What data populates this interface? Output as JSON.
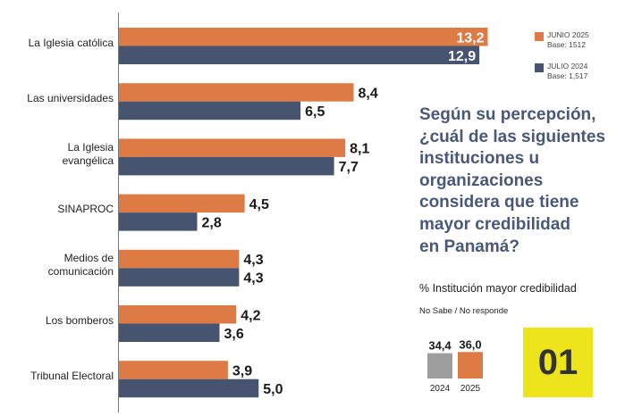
{
  "chart_data": {
    "type": "bar",
    "orientation": "horizontal",
    "categories": [
      "La Iglesia católica",
      "Las universidades",
      "La Iglesia\nevangélica",
      "SINAPROC",
      "Medios de\ncomunicación",
      "Los bomberos",
      "Tribunal Electoral"
    ],
    "series": [
      {
        "name": "JUNIO 2025",
        "base": "Base: 1512",
        "color": "#de7b45",
        "values": [
          13.2,
          8.4,
          8.1,
          4.5,
          4.3,
          4.2,
          3.9
        ],
        "labels": [
          "13,2",
          "8,4",
          "8,1",
          "4,5",
          "4,3",
          "4,2",
          "3,9"
        ]
      },
      {
        "name": "JULIO 2024",
        "base": "Base: 1,517",
        "color": "#475470",
        "values": [
          12.9,
          6.5,
          7.7,
          2.8,
          4.3,
          3.6,
          5.0
        ],
        "labels": [
          "12,9",
          "6,5",
          "7,7",
          "2,8",
          "4,3",
          "3,6",
          "5,0"
        ]
      }
    ],
    "xlim": [
      0,
      13.6
    ],
    "grid": false,
    "legend_position": "top-right"
  },
  "question": "Según su percepción,\n¿cuál de las siguientes\ninstituciones u\norganizaciones\nconsidera que tiene\nmayor credibilidad\nen Panamá?",
  "subtitle": "% Institución mayor credibilidad",
  "no_sabe": {
    "title": "No Sabe / No responde",
    "bars": [
      {
        "year": "2024",
        "value": 34.4,
        "label": "34,4",
        "color": "#9e9e9e"
      },
      {
        "year": "2025",
        "value": 36.0,
        "label": "36,0",
        "color": "#de7b45"
      }
    ]
  },
  "badge": "01"
}
